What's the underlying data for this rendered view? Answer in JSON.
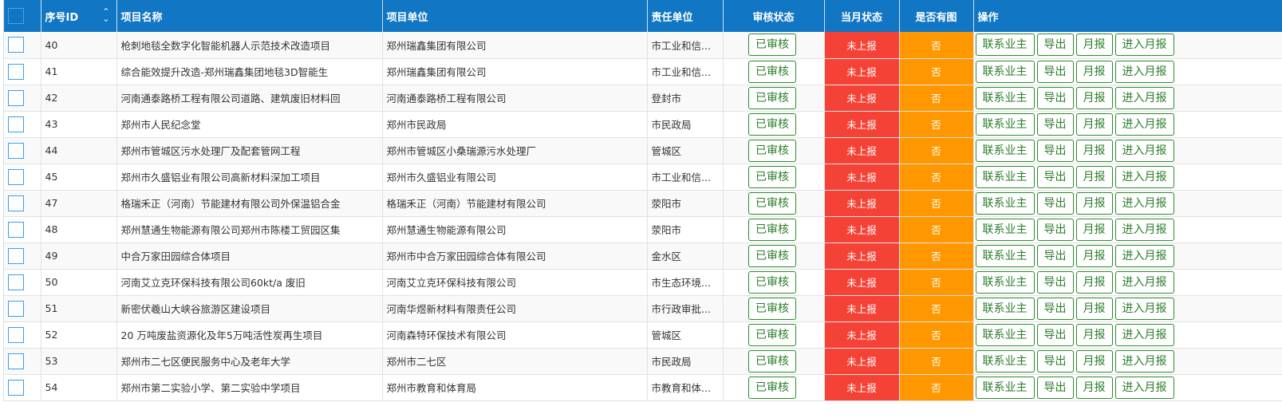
{
  "headers": {
    "id": "序号ID",
    "name": "项目名称",
    "unit": "项目单位",
    "resp": "责任单位",
    "audit": "审核状态",
    "month": "当月状态",
    "pic": "是否有图",
    "ops": "操作"
  },
  "colors": {
    "header": "#1176c3",
    "not_reported": "#f44336",
    "no_pic": "#ff9800",
    "button": "#2e8b2e"
  },
  "actions": {
    "contact": "联系业主",
    "export": "导出",
    "monthly": "月报",
    "enter": "进入月报"
  },
  "rows": [
    {
      "id": "40",
      "name": "枪刺地毯全数字化智能机器人示范技术改造项目",
      "unit": "郑州瑞鑫集团有限公司",
      "resp": "市工业和信...",
      "audit": "已审核",
      "month": "未上报",
      "pic": "否"
    },
    {
      "id": "41",
      "name": "综合能效提升改造-郑州瑞鑫集团地毯3D智能生",
      "unit": "郑州瑞鑫集团有限公司",
      "resp": "市工业和信...",
      "audit": "已审核",
      "month": "未上报",
      "pic": "否"
    },
    {
      "id": "42",
      "name": "河南通泰路桥工程有限公司道路、建筑废旧材料回",
      "unit": "河南通泰路桥工程有限公司",
      "resp": "登封市",
      "audit": "已审核",
      "month": "未上报",
      "pic": "否"
    },
    {
      "id": "43",
      "name": "郑州市人民纪念堂",
      "unit": "郑州市民政局",
      "resp": "市民政局",
      "audit": "已审核",
      "month": "未上报",
      "pic": "否"
    },
    {
      "id": "44",
      "name": "郑州市管城区污水处理厂及配套管网工程",
      "unit": "郑州市管城区小桑瑞源污水处理厂",
      "resp": "管城区",
      "audit": "已审核",
      "month": "未上报",
      "pic": "否"
    },
    {
      "id": "45",
      "name": "郑州市久盛铝业有限公司高新材料深加工项目",
      "unit": "郑州市久盛铝业有限公司",
      "resp": "市工业和信...",
      "audit": "已审核",
      "month": "未上报",
      "pic": "否"
    },
    {
      "id": "47",
      "name": "格瑞禾正（河南）节能建材有限公司外保温铝合金",
      "unit": "格瑞禾正（河南）节能建材有限公司",
      "resp": "荥阳市",
      "audit": "已审核",
      "month": "未上报",
      "pic": "否"
    },
    {
      "id": "48",
      "name": "郑州慧通生物能源有限公司郑州市陈楼工贸园区集",
      "unit": "郑州慧通生物能源有限公司",
      "resp": "荥阳市",
      "audit": "已审核",
      "month": "未上报",
      "pic": "否"
    },
    {
      "id": "49",
      "name": "中合万家田园综合体项目",
      "unit": "郑州市中合万家田园综合体有限公司",
      "resp": "金水区",
      "audit": "已审核",
      "month": "未上报",
      "pic": "否"
    },
    {
      "id": "50",
      "name": "河南艾立克环保科技有限公司60kt/a 废旧",
      "unit": "河南艾立克环保科技有限公司",
      "resp": "市生态环境...",
      "audit": "已审核",
      "month": "未上报",
      "pic": "否"
    },
    {
      "id": "51",
      "name": "新密伏羲山大峡谷旅游区建设项目",
      "unit": "河南华煜新材料有限责任公司",
      "resp": "市行政审批...",
      "audit": "已审核",
      "month": "未上报",
      "pic": "否"
    },
    {
      "id": "52",
      "name": "20 万吨废盐资源化及年5万吨活性炭再生项目",
      "unit": "河南森特环保技术有限公司",
      "resp": "管城区",
      "audit": "已审核",
      "month": "未上报",
      "pic": "否"
    },
    {
      "id": "53",
      "name": "郑州市二七区便民服务中心及老年大学",
      "unit": "郑州市二七区",
      "resp": "市民政局",
      "audit": "已审核",
      "month": "未上报",
      "pic": "否"
    },
    {
      "id": "54",
      "name": "郑州市第二实验小学、第二实验中学项目",
      "unit": "郑州市教育和体育局",
      "resp": "市教育和体...",
      "audit": "已审核",
      "month": "未上报",
      "pic": "否"
    }
  ]
}
